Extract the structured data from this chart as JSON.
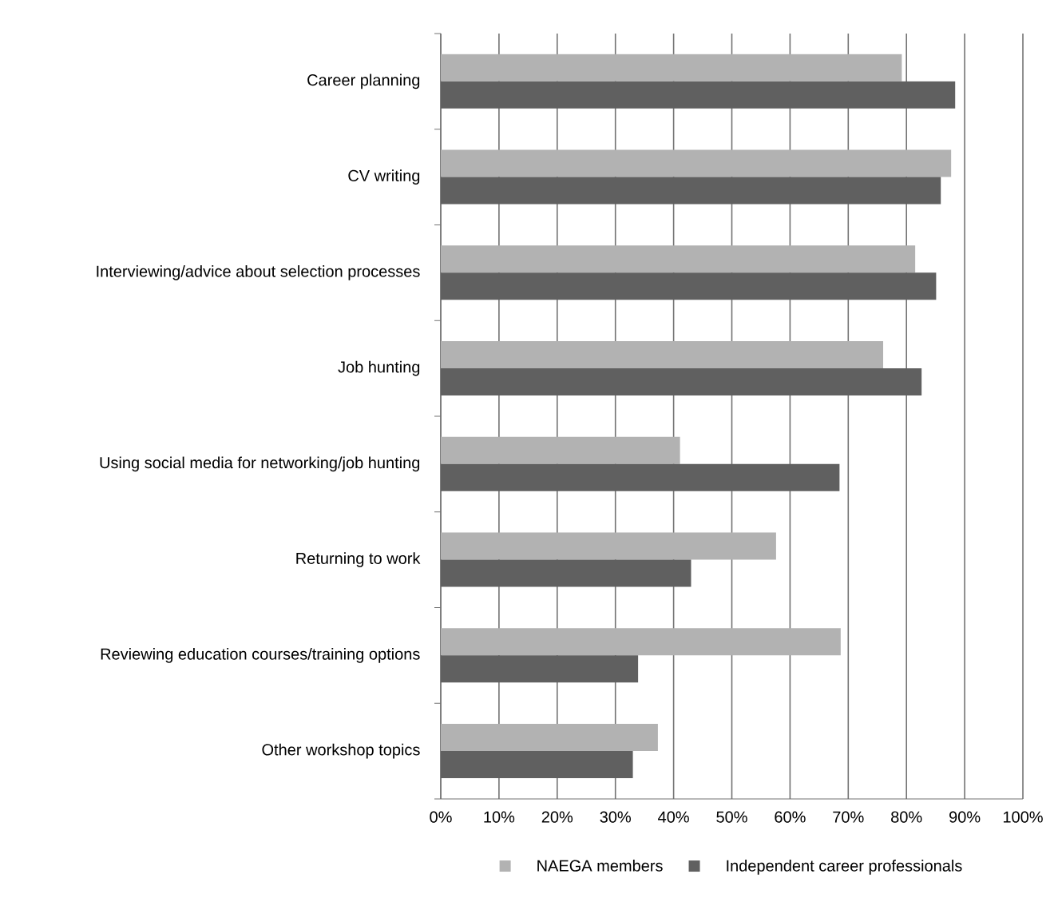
{
  "chart_data": {
    "type": "bar",
    "orientation": "horizontal",
    "categories": [
      "Career planning",
      "CV writing",
      "Interviewing/advice about selection processes",
      "Job hunting",
      "Using social media for networking/job hunting",
      "Returning to work",
      "Reviewing education courses/training options",
      "Other workshop topics"
    ],
    "series": [
      {
        "name": "NAEGA members",
        "color": "#b2b2b2",
        "values": [
          79.2,
          87.7,
          81.5,
          76.0,
          41.1,
          57.6,
          68.7,
          37.3
        ]
      },
      {
        "name": "Independent career professionals",
        "color": "#606060",
        "values": [
          88.4,
          85.9,
          85.1,
          82.6,
          68.5,
          43.0,
          33.9,
          33.0
        ]
      }
    ],
    "xlim": [
      0,
      100
    ],
    "xticks": [
      {
        "value": 0,
        "label": "0%"
      },
      {
        "value": 10,
        "label": "10%"
      },
      {
        "value": 20,
        "label": "20%"
      },
      {
        "value": 30,
        "label": "30%"
      },
      {
        "value": 40,
        "label": "40%"
      },
      {
        "value": 50,
        "label": "50%"
      },
      {
        "value": 60,
        "label": "60%"
      },
      {
        "value": 70,
        "label": "70%"
      },
      {
        "value": 80,
        "label": "80%"
      },
      {
        "value": 90,
        "label": "90%"
      },
      {
        "value": 100,
        "label": "100%"
      }
    ],
    "grid": "x",
    "legend": "bottom"
  }
}
